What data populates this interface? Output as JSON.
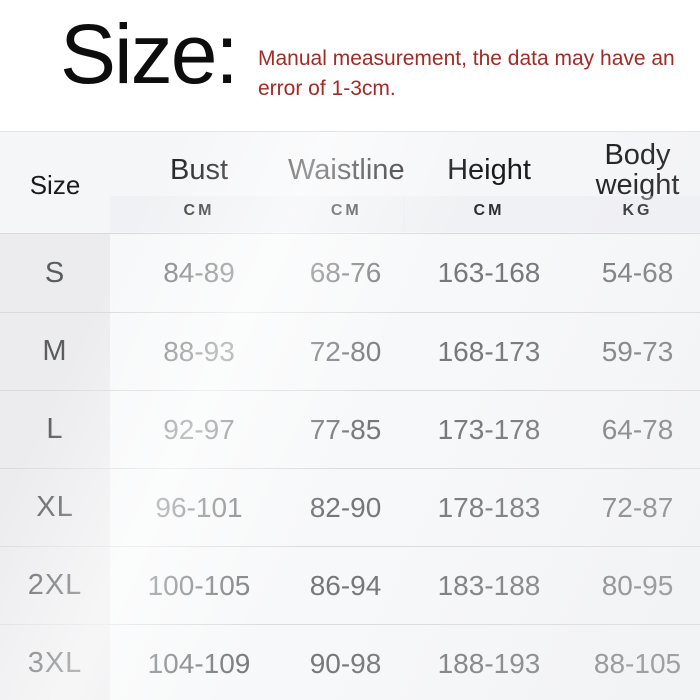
{
  "title": "Size:",
  "note": {
    "line1": "Manual measurement, the data may have an",
    "line2": "error of 1-3cm."
  },
  "colors": {
    "note_red": "#a32b26",
    "size_column_bg": "#ececee",
    "header_bg": "#f5f6f8",
    "row_divider": "#dadbde",
    "value_text": "#76787b"
  },
  "table": {
    "columns": [
      {
        "label": "Size",
        "unit": ""
      },
      {
        "label": "Bust",
        "unit": "CM"
      },
      {
        "label": "Waistline",
        "unit": "CM"
      },
      {
        "label": "Height",
        "unit": "CM"
      },
      {
        "label": "Body weight",
        "unit": "KG"
      }
    ]
  },
  "chart_data": {
    "type": "table",
    "title": "Size:",
    "note": "Manual measurement, the data may have an error of 1-3cm.",
    "columns": [
      "Size",
      "Bust (CM)",
      "Waistline (CM)",
      "Height (CM)",
      "Body weight (KG)"
    ],
    "rows": [
      [
        "S",
        "84-89",
        "68-76",
        "163-168",
        "54-68"
      ],
      [
        "M",
        "88-93",
        "72-80",
        "168-173",
        "59-73"
      ],
      [
        "L",
        "92-97",
        "77-85",
        "173-178",
        "64-78"
      ],
      [
        "XL",
        "96-101",
        "82-90",
        "178-183",
        "72-87"
      ],
      [
        "2XL",
        "100-105",
        "86-94",
        "183-188",
        "80-95"
      ],
      [
        "3XL",
        "104-109",
        "90-98",
        "188-193",
        "88-105"
      ]
    ]
  }
}
